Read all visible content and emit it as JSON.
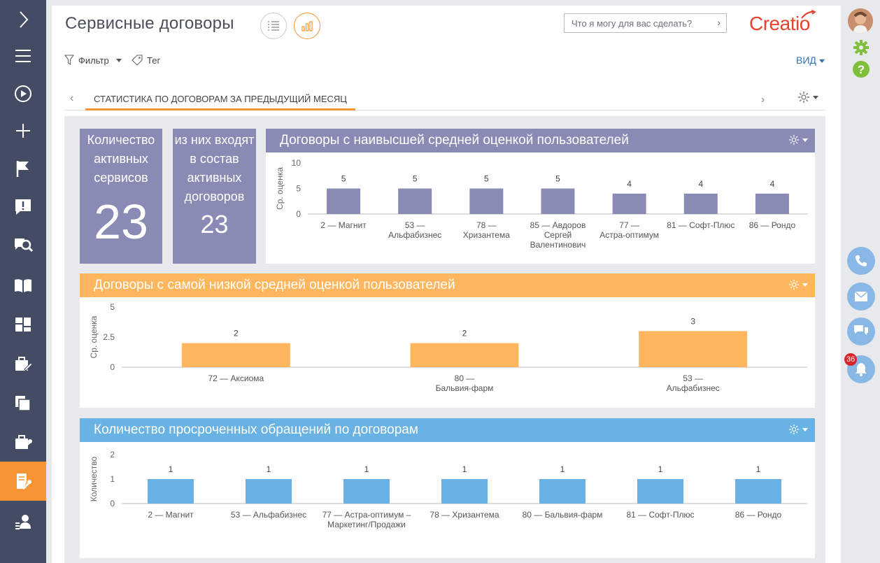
{
  "header": {
    "title": "Сервисные договоры",
    "search_placeholder": "Что я могу для вас сделать?",
    "logo": "Creatio"
  },
  "toolbar": {
    "filter_label": "Фильтр",
    "tag_label": "Тег",
    "view_label": "ВИД"
  },
  "tabs": {
    "active": "СТАТИСТИКА ПО ДОГОВОРАМ ЗА ПРЕДЫДУЩИЙ МЕСЯЦ"
  },
  "stats": [
    {
      "label": "Количество активных сервисов",
      "value": "23",
      "color": "#8a8bb5"
    },
    {
      "label": "из них входят в состав активных договоров",
      "value": "23",
      "color": "#8a8bb5"
    }
  ],
  "notifications": {
    "count": "36"
  },
  "colors": {
    "purple": "#8a8bb5",
    "orange": "#ffb65e",
    "blue": "#68b3e4",
    "accent": "#f79433",
    "sidebar": "#434c62"
  },
  "chart_data": [
    {
      "type": "bar",
      "title": "Договоры с наивысшей средней оценкой пользователей",
      "ylabel": "Ср. оценка",
      "ylim": [
        0,
        10
      ],
      "yticks": [
        0,
        5,
        10
      ],
      "categories": [
        "2 — Магнит",
        "53 — Альфабизнес",
        "78 — Хризантема",
        "85 — Авдоров Сергей Валентинович",
        "77 — Астра-оптимум",
        "81 — Софт-Плюс",
        "86 — Рондо"
      ],
      "values": [
        5,
        5,
        5,
        5,
        4,
        4,
        4
      ]
    },
    {
      "type": "bar",
      "title": "Договоры с самой низкой средней оценкой пользователей",
      "ylabel": "Ср. оценка",
      "ylim": [
        0,
        5
      ],
      "yticks": [
        0,
        2.5,
        5
      ],
      "categories": [
        "72 — Аксиома",
        "80 — Бальвия-фарм",
        "53 — Альфабизнес"
      ],
      "values": [
        2,
        2,
        3
      ]
    },
    {
      "type": "bar",
      "title": "Количество просроченных обращений по договорам",
      "ylabel": "Количество",
      "ylim": [
        0,
        2
      ],
      "yticks": [
        0,
        1,
        2
      ],
      "categories": [
        "2 — Магнит",
        "53 — Альфабизнес",
        "77 — Астра-оптимум – Маркетинг/Продажи",
        "78 — Хризантема",
        "80 — Бальвия-фарм",
        "81 — Софт-Плюс",
        "86 — Рондо"
      ],
      "values": [
        1,
        1,
        1,
        1,
        1,
        1,
        1
      ]
    }
  ]
}
